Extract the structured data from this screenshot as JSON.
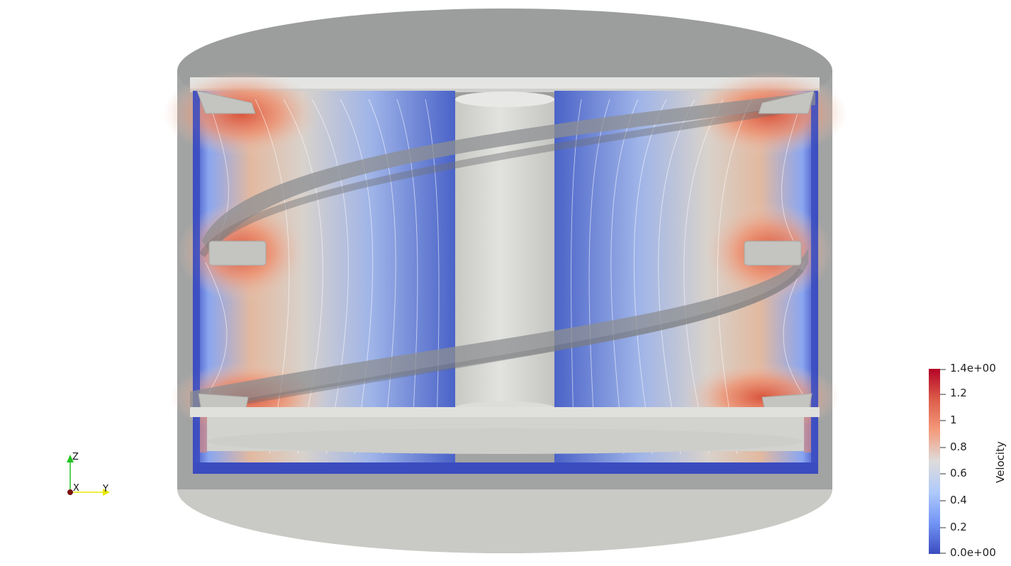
{
  "colorbar": {
    "title": "Velocity",
    "labels": [
      "1.4e+00",
      "1.2",
      "1",
      "0.8",
      "0.6",
      "0.4",
      "0.2",
      "0.0e+00"
    ],
    "colors": [
      "#b40426",
      "#dd5f4b",
      "#f49a7b",
      "#dedcdb",
      "#aec9fc",
      "#7396f5",
      "#3b4cc0"
    ]
  },
  "axes": {
    "z": "Z",
    "x": "X",
    "y": "Y",
    "z_color": "#22c322",
    "y_color": "#e8e800",
    "x_color": "#7a1010"
  },
  "scene": {
    "solid_color": "#d0d0cc",
    "wall_color": "#9e9f9f"
  }
}
